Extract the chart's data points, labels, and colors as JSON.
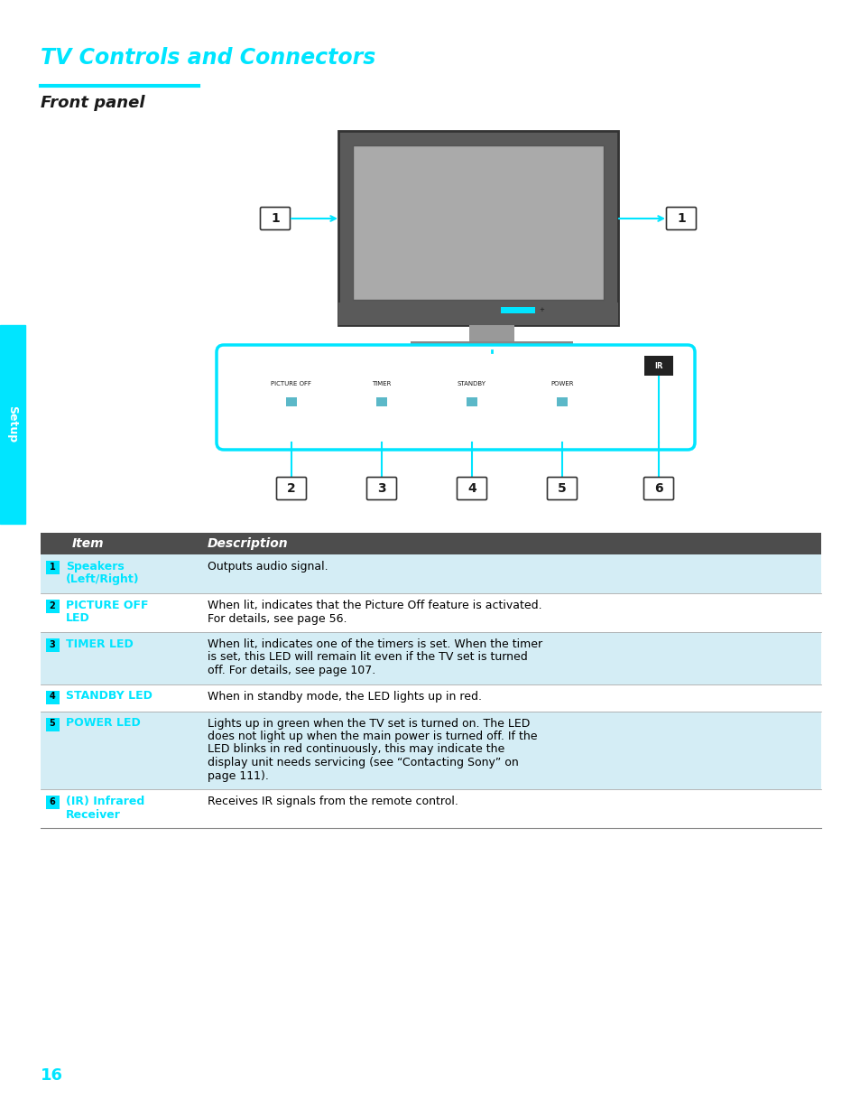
{
  "title": "TV Controls and Connectors",
  "subtitle": "Front panel",
  "title_color": "#00FFFF",
  "subtitle_color": "#000000",
  "cyan_color": "#00E5FF",
  "dark_color": "#1A1A1A",
  "setup_tab_color": "#00E5FF",
  "setup_text": "Setup",
  "page_number": "16",
  "table_header_bg": "#4D4D4D",
  "table_header_text": "#FFFFFF",
  "table_items": [
    {
      "num": "1",
      "item": "Speakers\n(Left/Right)",
      "desc": "Outputs audio signal.",
      "rows": 2
    },
    {
      "num": "2",
      "item": "PICTURE OFF\nLED",
      "desc": "When lit, indicates that the Picture Off feature is activated.\nFor details, see page 56.",
      "rows": 2
    },
    {
      "num": "3",
      "item": "TIMER LED",
      "desc": "When lit, indicates one of the timers is set. When the timer\nis set, this LED will remain lit even if the TV set is turned\noff. For details, see page 107.",
      "rows": 3
    },
    {
      "num": "4",
      "item": "STANDBY LED",
      "desc": "When in standby mode, the LED lights up in red.",
      "rows": 1
    },
    {
      "num": "5",
      "item": "POWER LED",
      "desc": "Lights up in green when the TV set is turned on. The LED\ndoes not light up when the main power is turned off. If the\nLED blinks in red continuously, this may indicate the\ndisplay unit needs servicing (see “Contacting Sony” on\npage 111).",
      "rows": 5
    },
    {
      "num": "6",
      "item": "(IR) Infrared\nReceiver",
      "desc": "Receives IR signals from the remote control.",
      "rows": 2
    }
  ],
  "tv_gray": "#B8B8B8",
  "tv_dark": "#5A5A5A",
  "tv_border": "#333333",
  "tv_screen_bg": "#AAAAAA",
  "panel_labels": [
    "PICTURE OFF",
    "TIMER",
    "STANDBY",
    "POWER"
  ],
  "led_color": "#5BB8C8"
}
